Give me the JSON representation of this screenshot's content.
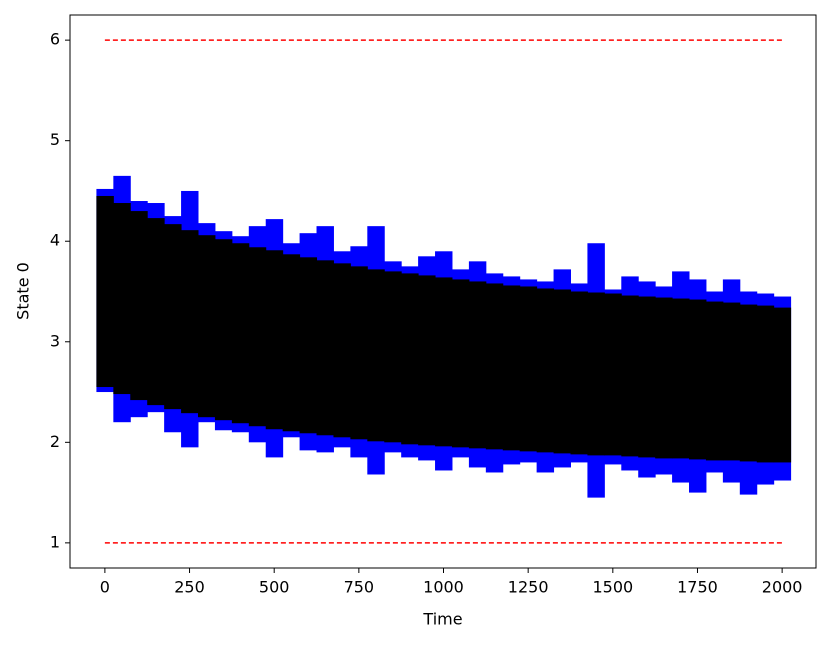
{
  "chart_data": {
    "type": "range_bar",
    "xlabel": "Time",
    "ylabel": "State 0",
    "xlim": [
      -103,
      2100
    ],
    "ylim": [
      0.75,
      6.25
    ],
    "xticks": [
      0,
      250,
      500,
      750,
      1000,
      1250,
      1500,
      1750,
      2000
    ],
    "yticks": [
      1,
      2,
      3,
      4,
      5,
      6
    ],
    "grid": false,
    "x": [
      0,
      50,
      100,
      150,
      200,
      250,
      300,
      350,
      400,
      450,
      500,
      550,
      600,
      650,
      700,
      750,
      800,
      850,
      900,
      950,
      1000,
      1050,
      1100,
      1150,
      1200,
      1250,
      1300,
      1350,
      1400,
      1450,
      1500,
      1550,
      1600,
      1650,
      1700,
      1750,
      1800,
      1850,
      1900,
      1950,
      2000
    ],
    "series": [
      {
        "color": "#0000ff",
        "low": [
          2.5,
          2.2,
          2.25,
          2.3,
          2.1,
          1.95,
          2.2,
          2.12,
          2.1,
          2.0,
          1.85,
          2.05,
          1.92,
          1.9,
          1.95,
          1.85,
          1.68,
          1.9,
          1.85,
          1.82,
          1.72,
          1.85,
          1.75,
          1.7,
          1.78,
          1.8,
          1.7,
          1.75,
          1.8,
          1.45,
          1.78,
          1.72,
          1.65,
          1.68,
          1.6,
          1.5,
          1.7,
          1.6,
          1.48,
          1.58,
          1.62
        ],
        "high": [
          4.52,
          4.65,
          4.4,
          4.38,
          4.25,
          4.5,
          4.18,
          4.1,
          4.05,
          4.15,
          4.22,
          3.98,
          4.08,
          4.15,
          3.9,
          3.95,
          4.15,
          3.8,
          3.75,
          3.85,
          3.9,
          3.72,
          3.8,
          3.68,
          3.65,
          3.62,
          3.6,
          3.72,
          3.58,
          3.98,
          3.52,
          3.65,
          3.6,
          3.55,
          3.7,
          3.62,
          3.5,
          3.62,
          3.5,
          3.48,
          3.45
        ]
      },
      {
        "color": "#000000",
        "low": [
          2.55,
          2.48,
          2.42,
          2.37,
          2.33,
          2.29,
          2.25,
          2.22,
          2.19,
          2.16,
          2.13,
          2.11,
          2.09,
          2.07,
          2.05,
          2.03,
          2.01,
          2.0,
          1.98,
          1.97,
          1.96,
          1.95,
          1.94,
          1.93,
          1.92,
          1.91,
          1.9,
          1.89,
          1.88,
          1.87,
          1.87,
          1.86,
          1.85,
          1.84,
          1.84,
          1.83,
          1.82,
          1.82,
          1.81,
          1.8,
          1.8
        ],
        "high": [
          4.45,
          4.38,
          4.3,
          4.23,
          4.17,
          4.11,
          4.06,
          4.02,
          3.98,
          3.94,
          3.91,
          3.87,
          3.84,
          3.81,
          3.78,
          3.75,
          3.72,
          3.7,
          3.68,
          3.66,
          3.64,
          3.62,
          3.6,
          3.58,
          3.56,
          3.55,
          3.53,
          3.52,
          3.5,
          3.49,
          3.48,
          3.46,
          3.45,
          3.44,
          3.43,
          3.42,
          3.4,
          3.39,
          3.37,
          3.36,
          3.34
        ]
      }
    ],
    "hlines": [
      {
        "y": 6,
        "xmin": 0,
        "xmax": 2000,
        "color": "#ff0000"
      },
      {
        "y": 1,
        "xmin": 0,
        "xmax": 2000,
        "color": "#ff0000"
      }
    ]
  }
}
